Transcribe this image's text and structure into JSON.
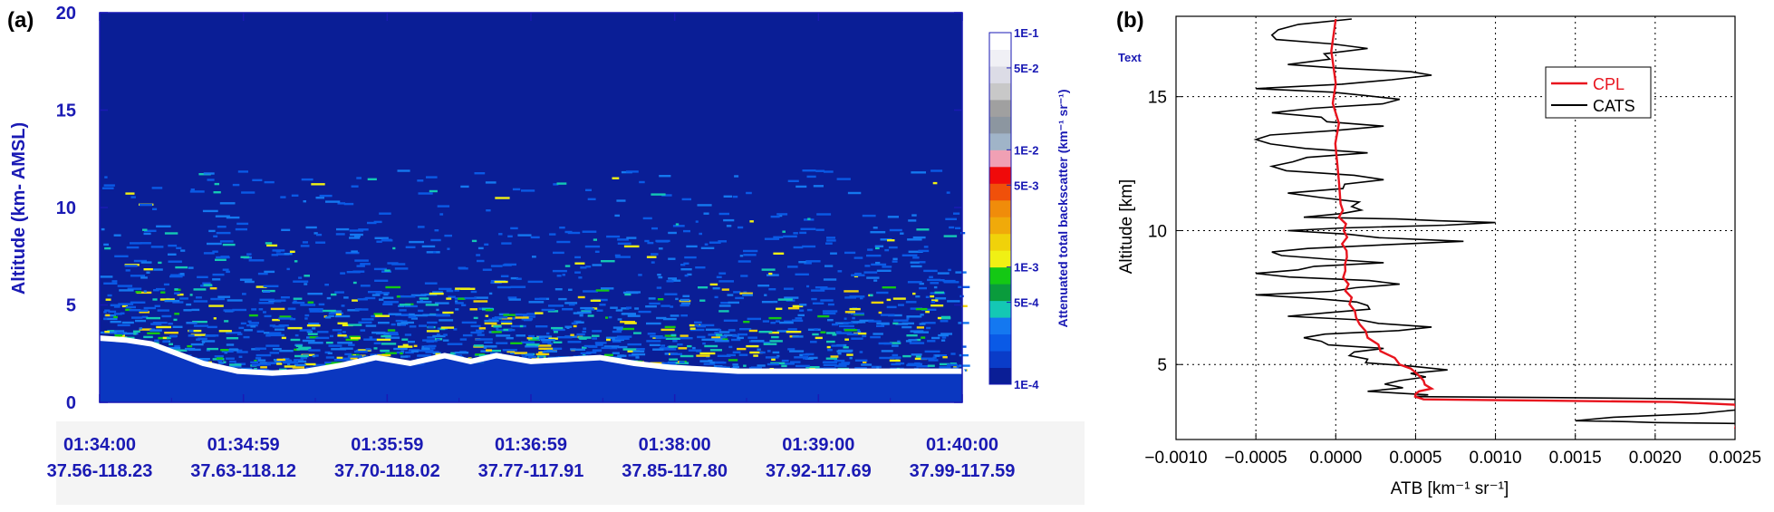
{
  "chart_data": [
    {
      "type": "heatmap",
      "panel_label": "(a)",
      "ylabel": "Altitude (km- AMSL)",
      "yticks": [
        0,
        5,
        10,
        15,
        20
      ],
      "ylim": [
        0,
        20
      ],
      "xticks": [
        {
          "time": "01:34:00",
          "coord": "37.56-118.23"
        },
        {
          "time": "01:34:59",
          "coord": "37.63-118.12"
        },
        {
          "time": "01:35:59",
          "coord": "37.70-118.02"
        },
        {
          "time": "01:36:59",
          "coord": "37.77-117.91"
        },
        {
          "time": "01:38:00",
          "coord": "37.85-117.80"
        },
        {
          "time": "01:39:00",
          "coord": "37.92-117.69"
        },
        {
          "time": "01:40:00",
          "coord": "37.99-117.59"
        }
      ],
      "colorbar": {
        "label": "Attenuated total backscatter (km⁻¹ sr⁻¹)",
        "tick_labels": [
          "1E-1",
          "5E-2",
          "1E-2",
          "5E-3",
          "1E-3",
          "5E-4",
          "1E-4"
        ],
        "colors": [
          "#0a1e96",
          "#0a3cc8",
          "#0a5ae6",
          "#1478f0",
          "#14c8b4",
          "#0a9b3c",
          "#14c814",
          "#f0f014",
          "#f0d20a",
          "#f0aa0a",
          "#f08c0a",
          "#f0500a",
          "#f00a0a",
          "#f0a0b4",
          "#a0b4c8",
          "#8c96a0",
          "#a0a0a0",
          "#c8c8c8",
          "#dcdce6",
          "#f0f0f5",
          "#ffffff"
        ],
        "scale": "log"
      },
      "surface_altitude_profile_km": {
        "fraction_of_track": [
          0,
          0.03,
          0.06,
          0.09,
          0.12,
          0.16,
          0.2,
          0.24,
          0.28,
          0.32,
          0.36,
          0.4,
          0.43,
          0.46,
          0.5,
          0.54,
          0.58,
          0.62,
          0.66,
          0.7,
          0.74,
          0.78,
          0.82,
          0.86,
          0.9,
          0.94,
          0.97,
          1.0
        ],
        "altitude": [
          3.3,
          3.2,
          3.0,
          2.5,
          2.0,
          1.6,
          1.5,
          1.6,
          1.9,
          2.3,
          2.0,
          2.4,
          2.1,
          2.4,
          2.1,
          2.2,
          2.3,
          2.0,
          1.8,
          1.7,
          1.6,
          1.6,
          1.6,
          1.6,
          1.6,
          1.6,
          1.6,
          1.6
        ]
      },
      "annotation": "Text"
    },
    {
      "type": "line",
      "panel_label": "(b)",
      "xlabel": "ATB [km⁻¹ sr⁻¹]",
      "ylabel": "Altitude [km]",
      "xlim": [
        -0.001,
        0.0025
      ],
      "ylim": [
        2.2,
        18
      ],
      "xtick_labels": [
        "−0.0010",
        "−0.0005",
        "0.0000",
        "0.0005",
        "0.0010",
        "0.0015",
        "0.0020",
        "0.0025"
      ],
      "xticks": [
        -0.001,
        -0.0005,
        0.0,
        0.0005,
        0.001,
        0.0015,
        0.002,
        0.0025
      ],
      "yticks": [
        5,
        10,
        15
      ],
      "grid": true,
      "legend_position": "top-right",
      "series": [
        {
          "name": "CPL",
          "color": "#e8141e",
          "x": [
            0.0,
            0.0,
            2e-05,
            1e-05,
            3e-05,
            2e-05,
            5e-05,
            4e-05,
            7e-05,
            6e-05,
            8e-05,
            0.0001,
            0.00012,
            0.00015,
            0.0002,
            0.00028,
            0.0004,
            0.0005,
            0.00055,
            0.0006,
            0.0005,
            0.00055,
            0.0021,
            0.0025,
            0.0025
          ],
          "y": [
            17.9,
            15.5,
            14.0,
            12.5,
            11.0,
            10.5,
            10.0,
            9.5,
            9.0,
            8.5,
            8.0,
            7.5,
            7.0,
            6.5,
            6.0,
            5.5,
            5.0,
            4.7,
            4.4,
            4.1,
            3.9,
            3.7,
            3.6,
            3.5,
            2.6
          ]
        },
        {
          "name": "CATS",
          "color": "#000000",
          "x": [
            0.0001,
            -0.0004,
            0.0002,
            -0.0003,
            0.0006,
            -0.0005,
            0.0004,
            -0.0004,
            0.0003,
            -0.0005,
            0.0002,
            -0.0004,
            0.0003,
            -0.0003,
            0.0001,
            -0.0002,
            0.001,
            -0.0003,
            0.0008,
            -0.0004,
            0.0003,
            -0.0005,
            0.0004,
            -0.0005,
            0.0002,
            -0.0003,
            0.0006,
            -0.0002,
            0.0003,
            0.0002,
            0.0007,
            0.0004,
            0.0002,
            0.0005,
            0.0025,
            0.0025,
            0.0015,
            0.0025
          ],
          "y": [
            17.9,
            17.3,
            16.8,
            16.2,
            15.8,
            15.3,
            14.9,
            14.4,
            13.9,
            13.4,
            12.9,
            12.4,
            11.9,
            11.4,
            10.9,
            10.5,
            10.3,
            10.0,
            9.6,
            9.2,
            8.8,
            8.4,
            8.0,
            7.6,
            7.2,
            6.8,
            6.4,
            6.0,
            5.6,
            5.2,
            4.8,
            4.4,
            4.0,
            3.8,
            3.7,
            3.3,
            2.9,
            2.8
          ]
        }
      ]
    }
  ]
}
